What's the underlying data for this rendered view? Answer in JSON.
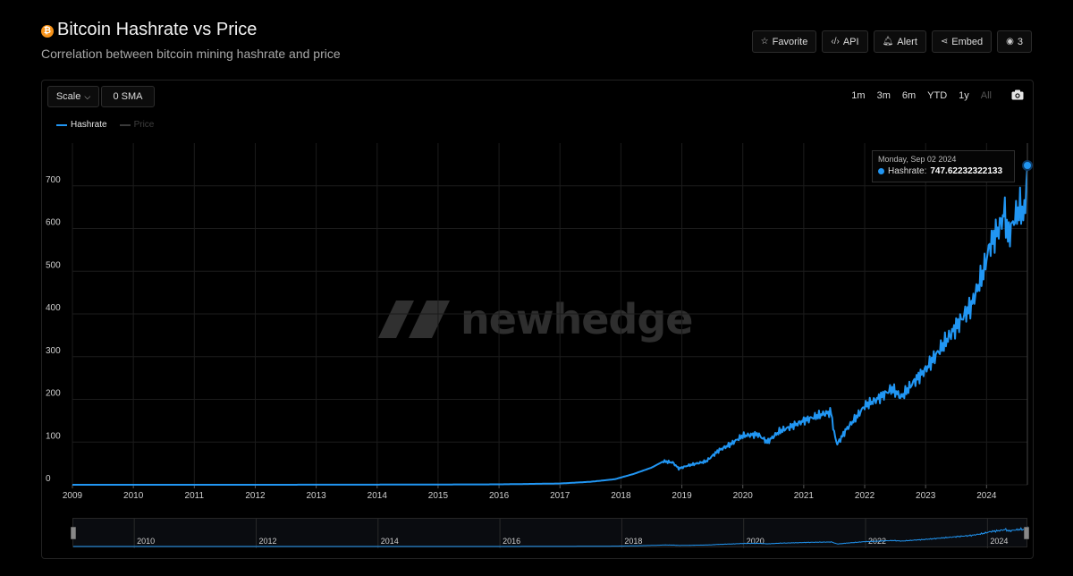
{
  "header": {
    "icon": "bitcoin-icon",
    "title": "Bitcoin Hashrate vs Price",
    "subtitle": "Correlation between bitcoin mining hashrate and price"
  },
  "actions": [
    {
      "label": "Favorite",
      "icon": "star-icon",
      "glyph": "☆"
    },
    {
      "label": "API",
      "icon": "code-icon",
      "glyph": "‹/›"
    },
    {
      "label": "Alert",
      "icon": "bell-icon",
      "glyph": "🔔︎"
    },
    {
      "label": "Embed",
      "icon": "share-icon",
      "glyph": "⋖"
    },
    {
      "label": "3",
      "icon": "eye-icon",
      "glyph": "◉"
    }
  ],
  "controls": {
    "scale_label": "Scale",
    "sma_label": "0 SMA"
  },
  "ranges": [
    {
      "label": "1m",
      "disabled": false
    },
    {
      "label": "3m",
      "disabled": false
    },
    {
      "label": "6m",
      "disabled": false
    },
    {
      "label": "YTD",
      "disabled": false
    },
    {
      "label": "1y",
      "disabled": false
    },
    {
      "label": "All",
      "disabled": true
    }
  ],
  "watermark": "newhedge",
  "tooltip": {
    "date": "Monday, Sep 02 2024",
    "series_label": "Hashrate:",
    "value": "747.62232322133"
  },
  "colors": {
    "hashrate": "#2196f3",
    "price": "#3a3a3a",
    "grid": "#1c1c1c"
  },
  "chart_data": {
    "type": "line",
    "grid": true,
    "legend_position": "top-left",
    "y_ticks": [
      0,
      100,
      200,
      300,
      400,
      500,
      600,
      700
    ],
    "x_ticks": [
      "2009",
      "2010",
      "2011",
      "2012",
      "2013",
      "2014",
      "2015",
      "2016",
      "2017",
      "2018",
      "2019",
      "2020",
      "2021",
      "2022",
      "2023",
      "2024"
    ],
    "navigator_ticks": [
      "2010",
      "2012",
      "2014",
      "2016",
      "2018",
      "2020",
      "2022",
      "2024"
    ],
    "ylim": [
      0,
      800
    ],
    "xlim": [
      2009.0,
      2024.67
    ],
    "series": [
      {
        "name": "Hashrate",
        "visible": true,
        "points": [
          [
            2009.0,
            0
          ],
          [
            2012.0,
            0
          ],
          [
            2014.0,
            0.3
          ],
          [
            2016.0,
            1
          ],
          [
            2017.0,
            3
          ],
          [
            2017.5,
            7
          ],
          [
            2017.9,
            13
          ],
          [
            2018.2,
            25
          ],
          [
            2018.5,
            40
          ],
          [
            2018.7,
            55
          ],
          [
            2018.85,
            52
          ],
          [
            2018.95,
            38
          ],
          [
            2019.1,
            45
          ],
          [
            2019.4,
            55
          ],
          [
            2019.6,
            80
          ],
          [
            2019.8,
            95
          ],
          [
            2020.0,
            115
          ],
          [
            2020.25,
            118
          ],
          [
            2020.4,
            100
          ],
          [
            2020.6,
            125
          ],
          [
            2020.85,
            140
          ],
          [
            2021.0,
            150
          ],
          [
            2021.3,
            165
          ],
          [
            2021.45,
            170
          ],
          [
            2021.5,
            120
          ],
          [
            2021.55,
            95
          ],
          [
            2021.7,
            130
          ],
          [
            2021.9,
            165
          ],
          [
            2022.0,
            185
          ],
          [
            2022.2,
            200
          ],
          [
            2022.45,
            225
          ],
          [
            2022.6,
            205
          ],
          [
            2022.8,
            240
          ],
          [
            2023.0,
            270
          ],
          [
            2023.15,
            300
          ],
          [
            2023.3,
            330
          ],
          [
            2023.45,
            360
          ],
          [
            2023.6,
            390
          ],
          [
            2023.75,
            420
          ],
          [
            2023.85,
            460
          ],
          [
            2023.95,
            500
          ],
          [
            2024.05,
            560
          ],
          [
            2024.2,
            600
          ],
          [
            2024.3,
            640
          ],
          [
            2024.35,
            580
          ],
          [
            2024.45,
            620
          ],
          [
            2024.55,
            650
          ],
          [
            2024.62,
            630
          ],
          [
            2024.67,
            747.62
          ]
        ]
      },
      {
        "name": "Price",
        "visible": false,
        "points": []
      }
    ]
  }
}
